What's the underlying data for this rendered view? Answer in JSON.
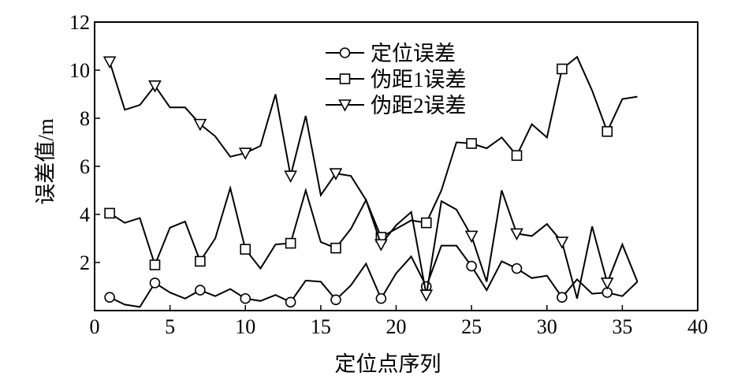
{
  "chart_data": {
    "type": "line",
    "xlabel": "定位点序列",
    "ylabel": "误差值/m",
    "xlim": [
      0,
      40
    ],
    "ylim": [
      0,
      12
    ],
    "xticks": [
      0,
      5,
      10,
      15,
      20,
      25,
      30,
      35,
      40
    ],
    "yticks": [
      2,
      4,
      6,
      8,
      10,
      12
    ],
    "ytick_origin_label": "0",
    "grid": false,
    "legend_position": "top-center",
    "series": [
      {
        "name": "定位误差",
        "marker": "circle",
        "x": [
          1,
          2,
          3,
          4,
          5,
          6,
          7,
          8,
          9,
          10,
          11,
          12,
          13,
          14,
          15,
          16,
          17,
          18,
          19,
          20,
          21,
          22,
          23,
          24,
          25,
          26,
          27,
          28,
          29,
          30,
          31,
          32,
          33,
          34,
          35,
          36
        ],
        "values": [
          0.55,
          0.25,
          0.15,
          1.15,
          0.75,
          0.5,
          0.85,
          0.6,
          0.9,
          0.5,
          0.4,
          0.65,
          0.35,
          1.25,
          1.2,
          0.45,
          1.05,
          1.95,
          0.5,
          1.55,
          2.25,
          1.0,
          2.7,
          2.7,
          1.85,
          0.85,
          2.05,
          1.75,
          1.35,
          1.45,
          0.55,
          1.3,
          0.7,
          0.75,
          0.6,
          1.2
        ],
        "marker_every": 3
      },
      {
        "name": "伪距1误差",
        "marker": "square",
        "x": [
          1,
          2,
          3,
          4,
          5,
          6,
          7,
          8,
          9,
          10,
          11,
          12,
          13,
          14,
          15,
          16,
          17,
          18,
          19,
          20,
          21,
          22,
          23,
          24,
          25,
          26,
          27,
          28,
          29,
          30,
          31,
          32,
          33,
          34,
          35,
          36
        ],
        "values": [
          4.05,
          3.65,
          3.85,
          1.9,
          3.45,
          3.7,
          2.05,
          3.0,
          5.1,
          2.55,
          1.75,
          2.75,
          2.8,
          5.0,
          2.85,
          2.6,
          3.4,
          4.6,
          3.05,
          3.4,
          3.75,
          3.65,
          5.0,
          7.0,
          6.95,
          6.75,
          7.2,
          6.45,
          7.75,
          7.2,
          10.05,
          10.55,
          9.15,
          7.45,
          8.8,
          8.9
        ],
        "marker_every": 3
      },
      {
        "name": "伪距2误差",
        "marker": "triangle-down",
        "x": [
          1,
          2,
          3,
          4,
          5,
          6,
          7,
          8,
          9,
          10,
          11,
          12,
          13,
          14,
          15,
          16,
          17,
          18,
          19,
          20,
          21,
          22,
          23,
          24,
          25,
          26,
          27,
          28,
          29,
          30,
          31,
          32,
          33,
          34,
          35,
          36
        ],
        "values": [
          10.35,
          8.35,
          8.55,
          9.35,
          8.45,
          8.45,
          7.75,
          7.25,
          6.4,
          6.55,
          6.85,
          9.0,
          5.6,
          8.1,
          4.8,
          5.7,
          5.6,
          4.6,
          2.75,
          3.55,
          4.1,
          0.65,
          4.55,
          4.2,
          3.1,
          1.2,
          5.0,
          3.2,
          3.1,
          3.6,
          2.85,
          0.5,
          3.5,
          1.15,
          2.75,
          1.2
        ],
        "marker_every": 3
      }
    ]
  }
}
